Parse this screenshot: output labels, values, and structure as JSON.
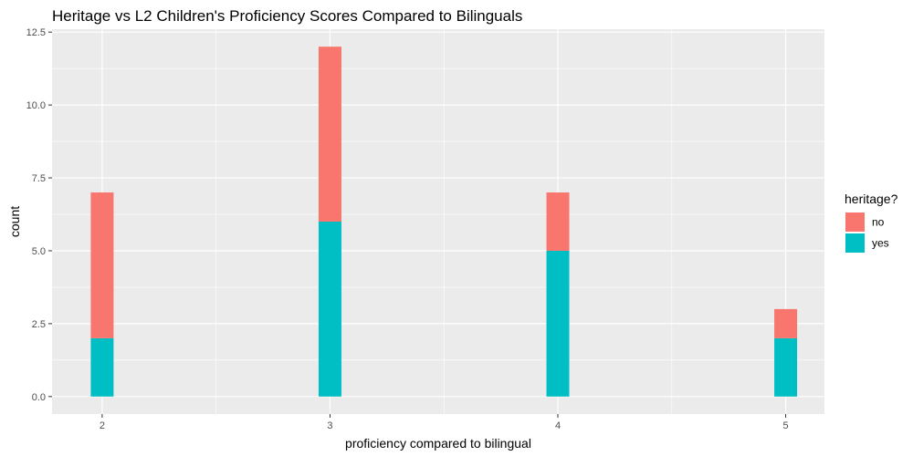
{
  "chart_data": {
    "type": "bar",
    "stacked": true,
    "title": "Heritage vs L2 Children's Proficiency Scores Compared to Bilinguals",
    "xlabel": "proficiency compared to bilingual",
    "ylabel": "count",
    "categories": [
      "2",
      "3",
      "4",
      "5"
    ],
    "x_values": [
      2,
      3,
      4,
      5
    ],
    "xlim": [
      1.78,
      5.17
    ],
    "ylim": [
      -0.6,
      12.6
    ],
    "y_ticks": [
      0.0,
      2.5,
      5.0,
      7.5,
      10.0,
      12.5
    ],
    "y_tick_labels": [
      "0.0",
      "2.5",
      "5.0",
      "7.5",
      "10.0",
      "12.5"
    ],
    "grid": true,
    "legend": {
      "title": "heritage?",
      "position": "right"
    },
    "series": [
      {
        "name": "yes",
        "color": "#00BFC4",
        "values": [
          2,
          6,
          5,
          2
        ]
      },
      {
        "name": "no",
        "color": "#F8766D",
        "values": [
          5,
          6,
          2,
          1
        ]
      }
    ],
    "legend_order": [
      "no",
      "yes"
    ],
    "panel_color": "#EBEBEB",
    "grid_color": "#FFFFFF"
  }
}
